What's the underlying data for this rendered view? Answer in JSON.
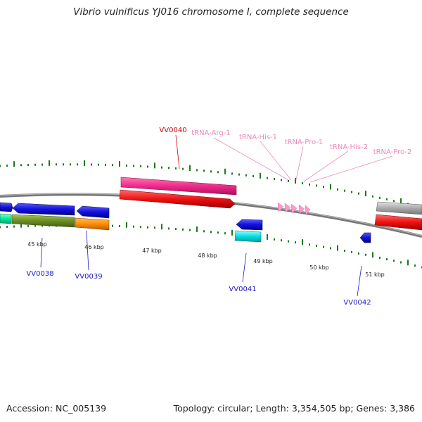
{
  "title": "Vibrio vulnificus YJ016 chromosome I, complete sequence",
  "accession": "Accession: NC_005139",
  "topology": "Topology: circular; Length: 3,354,505 bp; Genes: 3,386",
  "scale_labels": [
    "45 kbp",
    "46 kbp",
    "47 kbp",
    "48 kbp",
    "49 kbp",
    "50 kbp",
    "51 kbp"
  ],
  "features": {
    "vv0040": "VV0040",
    "trna_arg_1": "tRNA-Arg-1",
    "trna_his_1": "tRNA-His-1",
    "trna_pro_1": "tRNA-Pro-1",
    "trna_his_2": "tRNA-His-2",
    "trna_pro_2": "tRNA-Pro-2",
    "vv0038": "VV0038",
    "vv0039": "VV0039",
    "vv0041": "VV0041",
    "vv0042": "VV0042"
  },
  "colors": {
    "backbone": "#777777",
    "ticks": "#1a7a1a",
    "cds_forward_label": "#cc0000",
    "trna_label": "#ee88bb",
    "cds_reverse_label": "#1a1acc",
    "pink_gene": "#ee2a8a",
    "red_gene": "#ee1111",
    "blue_gene": "#1111dd",
    "olive_gene": "#6b8e23",
    "orange_gene": "#ff8c00",
    "cyan_gene": "#00e0e0",
    "teal_gene": "#00e8a0",
    "grey_gene": "#aaaaaa",
    "trna_arrows": "#ff99cc"
  }
}
